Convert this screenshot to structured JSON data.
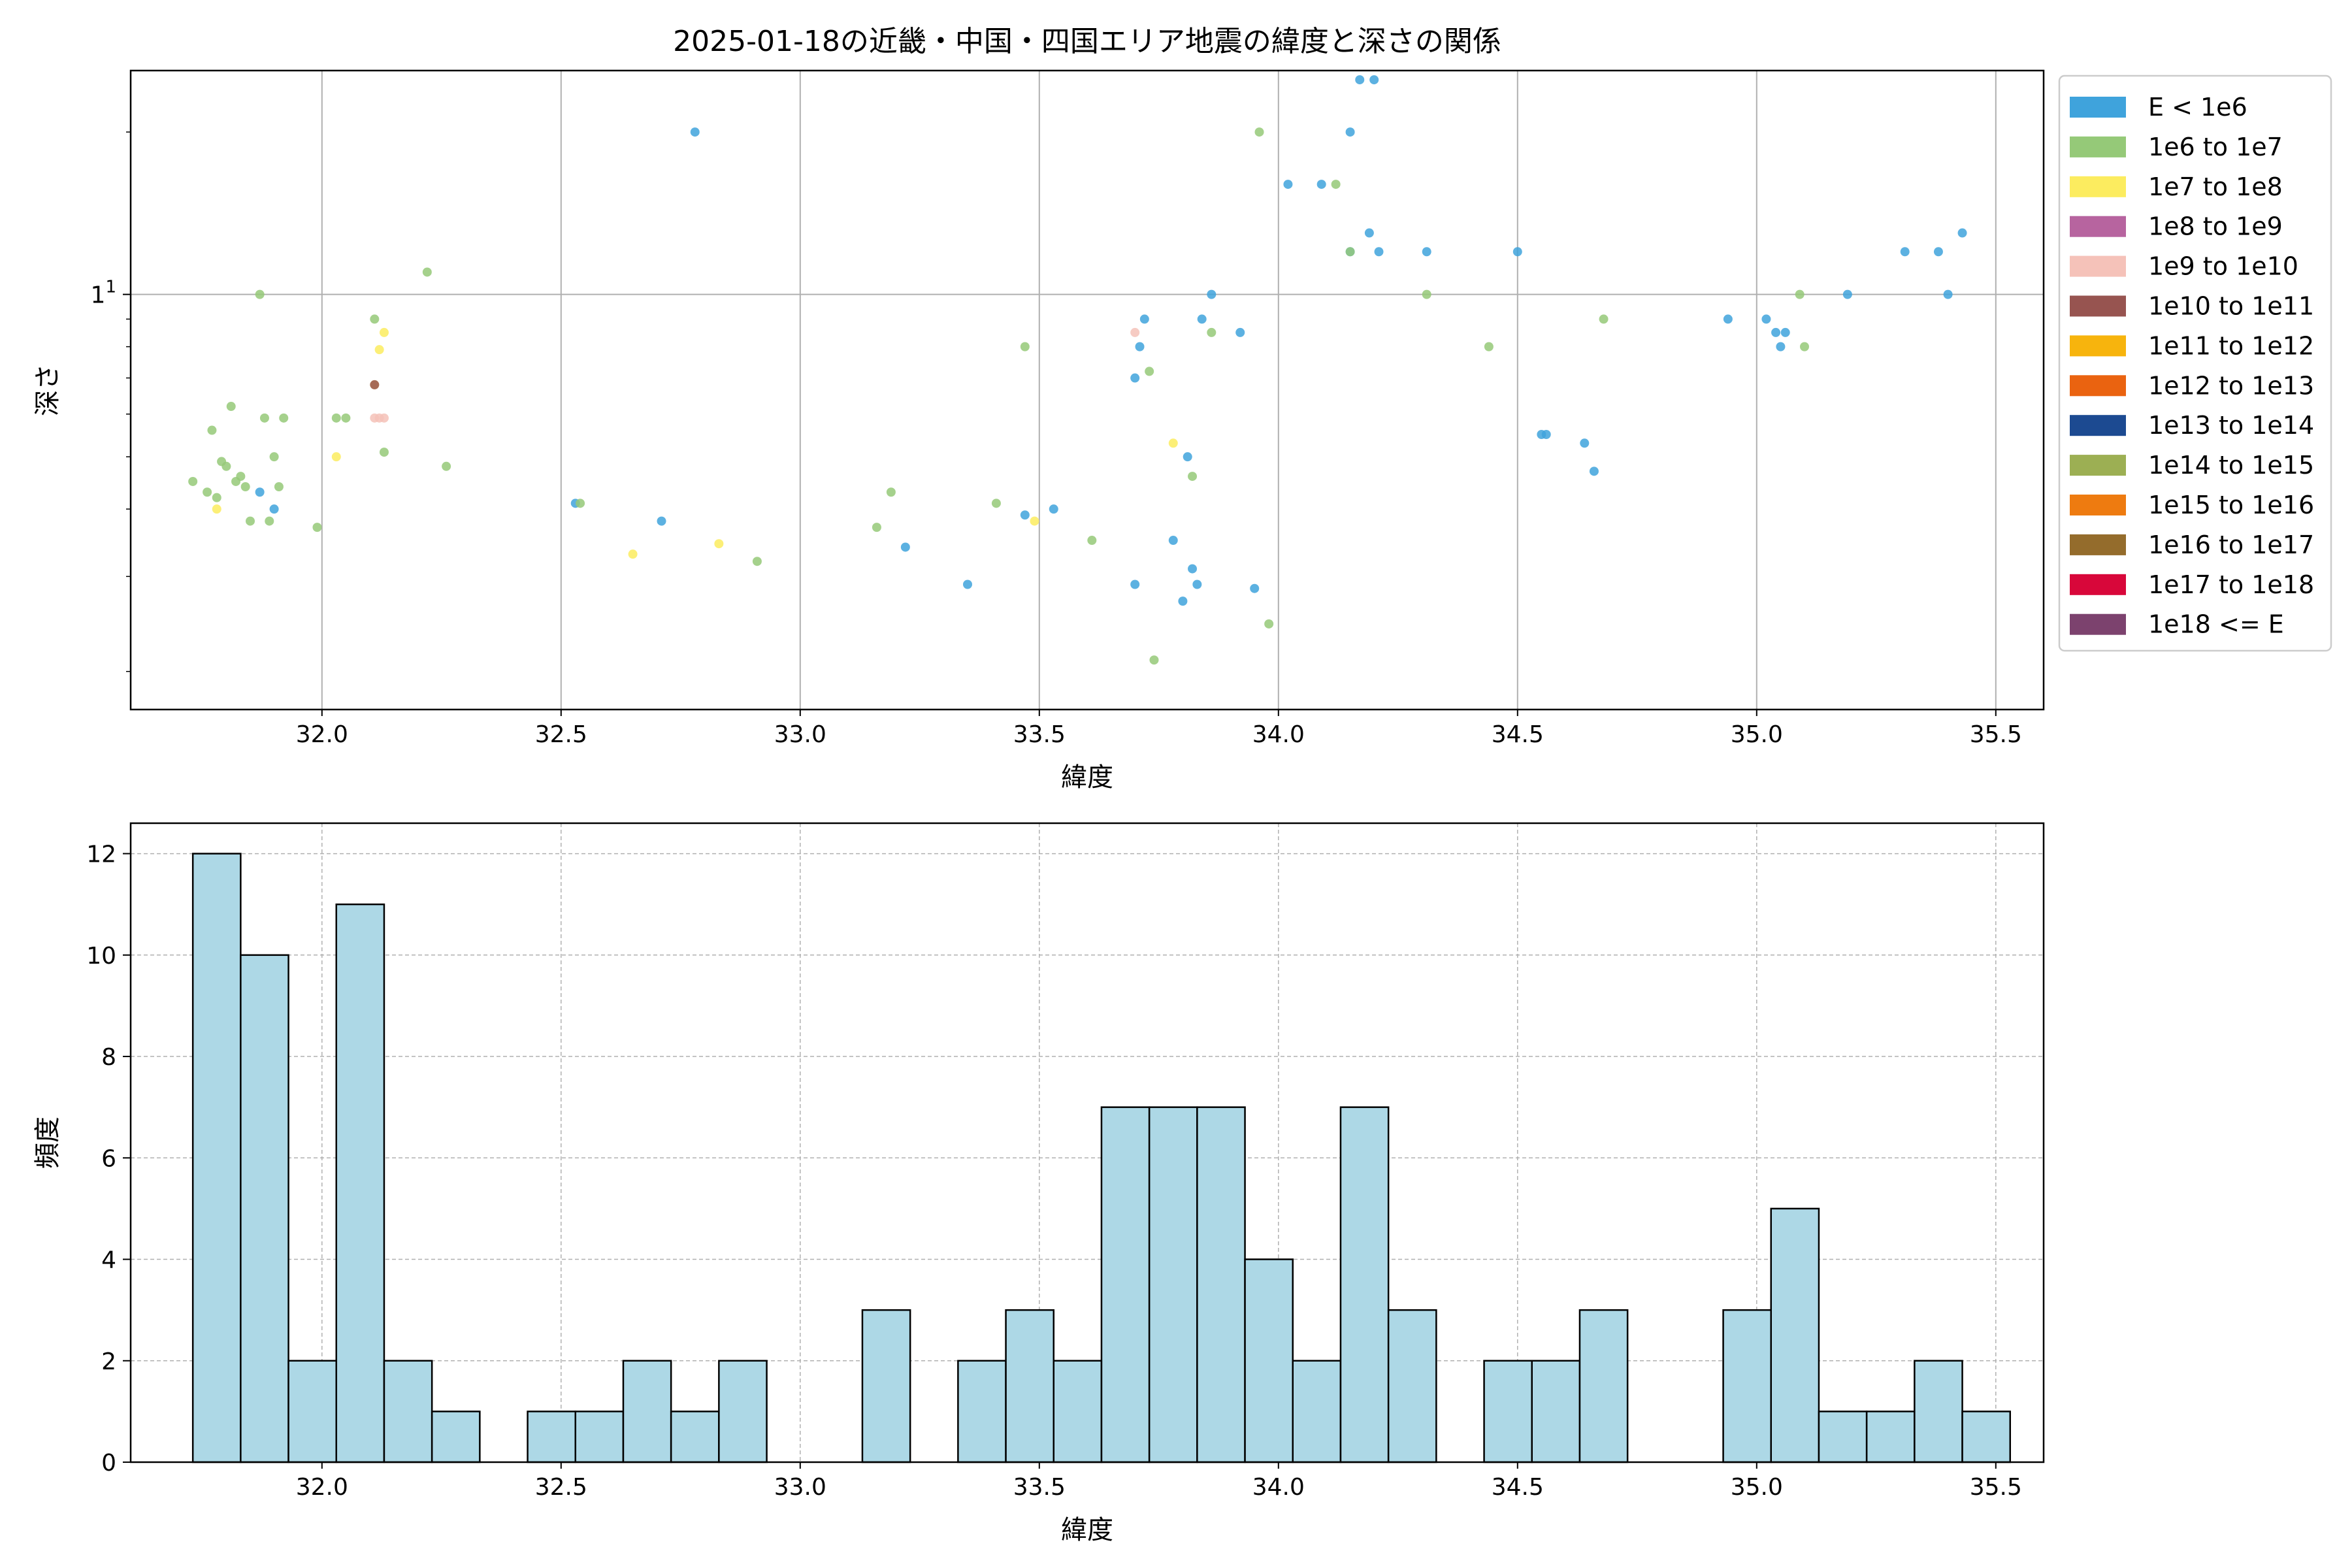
{
  "chart_data": [
    {
      "type": "scatter",
      "title": "2025-01-18の近畿・中国・四国エリア地震の緯度と深さの関係",
      "xlabel": "緯度",
      "ylabel": "深さ",
      "xlim": [
        31.6,
        35.6
      ],
      "ylim": [
        1.7,
        26
      ],
      "yscale": "log",
      "xticks": [
        "32.0",
        "32.5",
        "33.0",
        "33.5",
        "34.0",
        "34.5",
        "35.0",
        "35.5"
      ],
      "yticks": [
        {
          "value": 10,
          "label": "10"
        }
      ],
      "grid": true,
      "legend_position": "outside-right",
      "legend": [
        {
          "label": "E < 1e6",
          "color": "#3fa3dc"
        },
        {
          "label": "1e6 to 1e7",
          "color": "#95c978"
        },
        {
          "label": "1e7 to 1e8",
          "color": "#fcec5f"
        },
        {
          "label": "1e8 to 1e9",
          "color": "#b7649f"
        },
        {
          "label": "1e9 to 1e10",
          "color": "#f5c2b9"
        },
        {
          "label": "1e10 to 1e11",
          "color": "#975450"
        },
        {
          "label": "1e11 to 1e12",
          "color": "#f7b40d"
        },
        {
          "label": "1e12 to 1e13",
          "color": "#ea6310"
        },
        {
          "label": "1e13 to 1e14",
          "color": "#1c4a91"
        },
        {
          "label": "1e14 to 1e15",
          "color": "#9caf53"
        },
        {
          "label": "1e15 to 1e16",
          "color": "#ee7b10"
        },
        {
          "label": "1e16 to 1e17",
          "color": "#946c2c"
        },
        {
          "label": "1e17 to 1e18",
          "color": "#d8073a"
        },
        {
          "label": "1e18 <= E",
          "color": "#7c426e"
        }
      ],
      "series": [
        {
          "color": "#3fa3dc",
          "points": [
            [
              31.87,
              4.3
            ],
            [
              31.9,
              4.0
            ],
            [
              32.53,
              4.1
            ],
            [
              32.71,
              3.8
            ],
            [
              32.78,
              20
            ],
            [
              33.22,
              3.4
            ],
            [
              33.35,
              2.9
            ],
            [
              33.47,
              3.9
            ],
            [
              33.53,
              4.0
            ],
            [
              33.7,
              7.0
            ],
            [
              33.7,
              2.9
            ],
            [
              33.71,
              8.0
            ],
            [
              33.72,
              9.0
            ],
            [
              33.78,
              3.5
            ],
            [
              33.8,
              2.7
            ],
            [
              33.81,
              5.0
            ],
            [
              33.82,
              3.1
            ],
            [
              33.83,
              2.9
            ],
            [
              33.84,
              9.0
            ],
            [
              33.86,
              10.0
            ],
            [
              33.92,
              8.5
            ],
            [
              33.95,
              2.85
            ],
            [
              34.02,
              16
            ],
            [
              34.09,
              16
            ],
            [
              34.15,
              12
            ],
            [
              34.15,
              20
            ],
            [
              34.17,
              25
            ],
            [
              34.19,
              13
            ],
            [
              34.2,
              25
            ],
            [
              34.21,
              12
            ],
            [
              34.31,
              12
            ],
            [
              34.5,
              12
            ],
            [
              34.55,
              5.5
            ],
            [
              34.56,
              5.5
            ],
            [
              34.64,
              5.3
            ],
            [
              34.66,
              4.7
            ],
            [
              34.94,
              9.0
            ],
            [
              35.02,
              9.0
            ],
            [
              35.04,
              8.5
            ],
            [
              35.05,
              8.0
            ],
            [
              35.06,
              8.5
            ],
            [
              35.19,
              10
            ],
            [
              35.31,
              12
            ],
            [
              35.38,
              12
            ],
            [
              35.4,
              10
            ],
            [
              35.43,
              13
            ]
          ]
        },
        {
          "color": "#95c978",
          "points": [
            [
              31.73,
              4.5
            ],
            [
              31.76,
              4.3
            ],
            [
              31.77,
              5.6
            ],
            [
              31.78,
              4.2
            ],
            [
              31.79,
              4.9
            ],
            [
              31.8,
              4.8
            ],
            [
              31.81,
              6.2
            ],
            [
              31.82,
              4.5
            ],
            [
              31.83,
              4.6
            ],
            [
              31.84,
              4.4
            ],
            [
              31.85,
              3.8
            ],
            [
              31.87,
              10
            ],
            [
              31.88,
              5.9
            ],
            [
              31.89,
              3.8
            ],
            [
              31.9,
              5.0
            ],
            [
              31.91,
              4.4
            ],
            [
              31.92,
              5.9
            ],
            [
              31.99,
              3.7
            ],
            [
              32.03,
              5.9
            ],
            [
              32.05,
              5.9
            ],
            [
              32.11,
              9.0
            ],
            [
              32.13,
              5.1
            ],
            [
              32.22,
              11
            ],
            [
              32.26,
              4.8
            ],
            [
              32.54,
              4.1
            ],
            [
              32.91,
              3.2
            ],
            [
              33.16,
              3.7
            ],
            [
              33.19,
              4.3
            ],
            [
              33.41,
              4.1
            ],
            [
              33.47,
              8.0
            ],
            [
              33.61,
              3.5
            ],
            [
              33.73,
              7.2
            ],
            [
              33.74,
              2.1
            ],
            [
              33.82,
              4.6
            ],
            [
              33.86,
              8.5
            ],
            [
              33.96,
              20
            ],
            [
              33.98,
              2.45
            ],
            [
              34.12,
              16
            ],
            [
              34.15,
              12
            ],
            [
              34.31,
              10
            ],
            [
              34.44,
              8.0
            ],
            [
              34.68,
              9.0
            ],
            [
              35.09,
              10
            ],
            [
              35.1,
              8.0
            ]
          ]
        },
        {
          "color": "#fcec5f",
          "points": [
            [
              31.78,
              4.0
            ],
            [
              32.03,
              5.0
            ],
            [
              32.11,
              6.8
            ],
            [
              32.12,
              7.9
            ],
            [
              32.13,
              8.5
            ],
            [
              32.65,
              3.3
            ],
            [
              32.83,
              3.45
            ],
            [
              33.49,
              3.8
            ],
            [
              33.78,
              5.3
            ]
          ]
        },
        {
          "color": "#f5c2b9",
          "points": [
            [
              32.11,
              5.9
            ],
            [
              32.12,
              5.9
            ],
            [
              32.13,
              5.9
            ],
            [
              33.7,
              8.5
            ]
          ]
        },
        {
          "color": "#975450",
          "points": [
            [
              32.11,
              6.8
            ]
          ]
        }
      ]
    },
    {
      "type": "bar",
      "title": "",
      "xlabel": "緯度",
      "ylabel": "頻度",
      "xlim": [
        31.6,
        35.6
      ],
      "ylim": [
        0,
        12.6
      ],
      "xticks": [
        "32.0",
        "32.5",
        "33.0",
        "33.5",
        "34.0",
        "34.5",
        "35.0",
        "35.5"
      ],
      "yticks": [
        "0",
        "2",
        "4",
        "6",
        "8",
        "10",
        "12"
      ],
      "grid": true,
      "bar_color": "#add8e6",
      "bin_start": 31.73,
      "bin_width": 0.1,
      "values": [
        12,
        10,
        2,
        11,
        2,
        1,
        0,
        1,
        1,
        2,
        1,
        2,
        0,
        0,
        3,
        0,
        2,
        3,
        2,
        7,
        7,
        7,
        4,
        2,
        7,
        3,
        0,
        2,
        2,
        3,
        0,
        0,
        3,
        5,
        1,
        1,
        2,
        1
      ]
    }
  ]
}
